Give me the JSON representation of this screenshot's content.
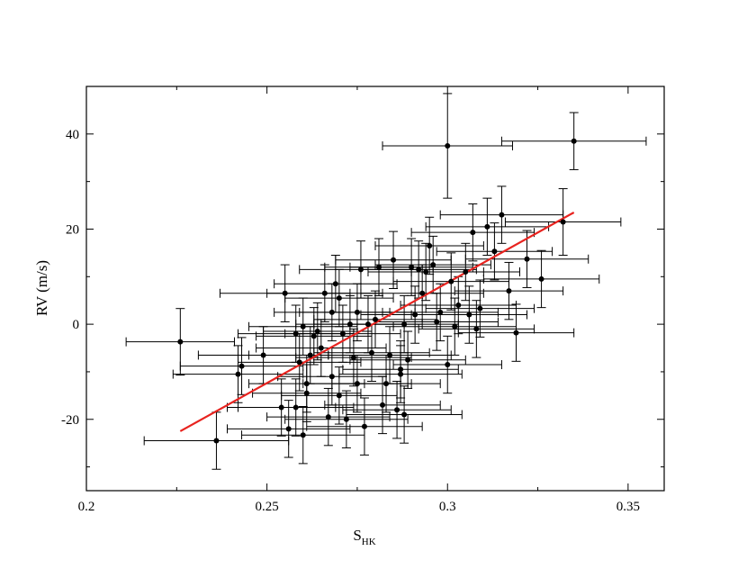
{
  "chart_data": {
    "type": "scatter",
    "xlabel": "S",
    "xlabel_subscript": "HK",
    "ylabel": "RV (m/s)",
    "xlim": [
      0.2,
      0.36
    ],
    "ylim": [
      -35,
      50
    ],
    "x_ticks": [
      0.2,
      0.25,
      0.3,
      0.35
    ],
    "x_tick_labels": [
      "0.2",
      "0.25",
      "0.3",
      "0.35"
    ],
    "y_ticks": [
      -20,
      0,
      20,
      40
    ],
    "y_tick_labels": [
      "-20",
      "0",
      "20",
      "40"
    ],
    "grid": false,
    "colors": {
      "points": "#000000",
      "fit_line": "#e8231f",
      "frame": "#000000"
    },
    "fit_line": {
      "x": [
        0.226,
        0.335
      ],
      "y": [
        -22.5,
        23.5
      ]
    },
    "points": [
      {
        "x": 0.226,
        "y": -3.7,
        "xerr": 0.015,
        "yerr": 7
      },
      {
        "x": 0.236,
        "y": -24.5,
        "xerr": 0.02,
        "yerr": 6
      },
      {
        "x": 0.242,
        "y": -10.5,
        "xerr": 0.018,
        "yerr": 6
      },
      {
        "x": 0.243,
        "y": -8.8,
        "xerr": 0.017,
        "yerr": 6
      },
      {
        "x": 0.249,
        "y": -6.5,
        "xerr": 0.018,
        "yerr": 6
      },
      {
        "x": 0.254,
        "y": -17.5,
        "xerr": 0.015,
        "yerr": 6
      },
      {
        "x": 0.255,
        "y": 6.5,
        "xerr": 0.018,
        "yerr": 6
      },
      {
        "x": 0.256,
        "y": -22,
        "xerr": 0.017,
        "yerr": 6
      },
      {
        "x": 0.258,
        "y": -2,
        "xerr": 0.016,
        "yerr": 6
      },
      {
        "x": 0.258,
        "y": -17.5,
        "xerr": 0.016,
        "yerr": 6
      },
      {
        "x": 0.259,
        "y": -8,
        "xerr": 0.017,
        "yerr": 6
      },
      {
        "x": 0.26,
        "y": -23.3,
        "xerr": 0.017,
        "yerr": 6
      },
      {
        "x": 0.26,
        "y": -0.5,
        "xerr": 0.015,
        "yerr": 6
      },
      {
        "x": 0.261,
        "y": -12.5,
        "xerr": 0.016,
        "yerr": 6
      },
      {
        "x": 0.261,
        "y": -14.5,
        "xerr": 0.015,
        "yerr": 6
      },
      {
        "x": 0.262,
        "y": -6.5,
        "xerr": 0.017,
        "yerr": 6
      },
      {
        "x": 0.263,
        "y": -2.5,
        "xerr": 0.016,
        "yerr": 6
      },
      {
        "x": 0.264,
        "y": -1.5,
        "xerr": 0.015,
        "yerr": 6
      },
      {
        "x": 0.265,
        "y": -5,
        "xerr": 0.018,
        "yerr": 6
      },
      {
        "x": 0.266,
        "y": 6.5,
        "xerr": 0.016,
        "yerr": 6
      },
      {
        "x": 0.267,
        "y": -19.5,
        "xerr": 0.017,
        "yerr": 6
      },
      {
        "x": 0.268,
        "y": -11,
        "xerr": 0.015,
        "yerr": 6
      },
      {
        "x": 0.268,
        "y": 2.5,
        "xerr": 0.016,
        "yerr": 6
      },
      {
        "x": 0.269,
        "y": 8.5,
        "xerr": 0.017,
        "yerr": 6
      },
      {
        "x": 0.27,
        "y": -15,
        "xerr": 0.016,
        "yerr": 6
      },
      {
        "x": 0.27,
        "y": 5.5,
        "xerr": 0.015,
        "yerr": 6
      },
      {
        "x": 0.271,
        "y": -2,
        "xerr": 0.016,
        "yerr": 6
      },
      {
        "x": 0.272,
        "y": -20,
        "xerr": 0.017,
        "yerr": 6
      },
      {
        "x": 0.273,
        "y": 0,
        "xerr": 0.015,
        "yerr": 6
      },
      {
        "x": 0.274,
        "y": -7,
        "xerr": 0.016,
        "yerr": 6
      },
      {
        "x": 0.275,
        "y": -12.5,
        "xerr": 0.015,
        "yerr": 6
      },
      {
        "x": 0.275,
        "y": 2.5,
        "xerr": 0.016,
        "yerr": 6
      },
      {
        "x": 0.276,
        "y": 11.5,
        "xerr": 0.017,
        "yerr": 6
      },
      {
        "x": 0.277,
        "y": -21.5,
        "xerr": 0.016,
        "yerr": 6
      },
      {
        "x": 0.278,
        "y": 0,
        "xerr": 0.015,
        "yerr": 6
      },
      {
        "x": 0.279,
        "y": -6,
        "xerr": 0.016,
        "yerr": 6
      },
      {
        "x": 0.28,
        "y": 1,
        "xerr": 0.017,
        "yerr": 6
      },
      {
        "x": 0.281,
        "y": 12,
        "xerr": 0.015,
        "yerr": 6
      },
      {
        "x": 0.282,
        "y": -17,
        "xerr": 0.016,
        "yerr": 6
      },
      {
        "x": 0.283,
        "y": -12.5,
        "xerr": 0.015,
        "yerr": 6
      },
      {
        "x": 0.284,
        "y": -6.5,
        "xerr": 0.017,
        "yerr": 6
      },
      {
        "x": 0.285,
        "y": 13.5,
        "xerr": 0.016,
        "yerr": 6
      },
      {
        "x": 0.286,
        "y": -18,
        "xerr": 0.015,
        "yerr": 6
      },
      {
        "x": 0.287,
        "y": -9.5,
        "xerr": 0.016,
        "yerr": 6
      },
      {
        "x": 0.287,
        "y": -10.5,
        "xerr": 0.017,
        "yerr": 6
      },
      {
        "x": 0.288,
        "y": -19,
        "xerr": 0.016,
        "yerr": 6
      },
      {
        "x": 0.288,
        "y": 0,
        "xerr": 0.015,
        "yerr": 6
      },
      {
        "x": 0.289,
        "y": -7.5,
        "xerr": 0.016,
        "yerr": 6
      },
      {
        "x": 0.29,
        "y": 12,
        "xerr": 0.017,
        "yerr": 6
      },
      {
        "x": 0.291,
        "y": 2,
        "xerr": 0.015,
        "yerr": 6
      },
      {
        "x": 0.292,
        "y": 11.5,
        "xerr": 0.016,
        "yerr": 6
      },
      {
        "x": 0.293,
        "y": 6.5,
        "xerr": 0.017,
        "yerr": 6
      },
      {
        "x": 0.294,
        "y": 11,
        "xerr": 0.016,
        "yerr": 6
      },
      {
        "x": 0.295,
        "y": 16.5,
        "xerr": 0.015,
        "yerr": 6
      },
      {
        "x": 0.296,
        "y": 12.5,
        "xerr": 0.016,
        "yerr": 6
      },
      {
        "x": 0.297,
        "y": 0.5,
        "xerr": 0.017,
        "yerr": 6
      },
      {
        "x": 0.298,
        "y": 2.5,
        "xerr": 0.016,
        "yerr": 6
      },
      {
        "x": 0.3,
        "y": -8.5,
        "xerr": 0.015,
        "yerr": 6
      },
      {
        "x": 0.301,
        "y": 9,
        "xerr": 0.016,
        "yerr": 6
      },
      {
        "x": 0.302,
        "y": -0.5,
        "xerr": 0.017,
        "yerr": 6
      },
      {
        "x": 0.303,
        "y": 4,
        "xerr": 0.016,
        "yerr": 6
      },
      {
        "x": 0.305,
        "y": 11,
        "xerr": 0.015,
        "yerr": 6
      },
      {
        "x": 0.306,
        "y": 2,
        "xerr": 0.016,
        "yerr": 6
      },
      {
        "x": 0.307,
        "y": 19.3,
        "xerr": 0.017,
        "yerr": 6
      },
      {
        "x": 0.308,
        "y": -1,
        "xerr": 0.016,
        "yerr": 6
      },
      {
        "x": 0.309,
        "y": 3.3,
        "xerr": 0.015,
        "yerr": 6
      },
      {
        "x": 0.3,
        "y": 37.5,
        "xerr": 0.018,
        "yerr": 11
      },
      {
        "x": 0.311,
        "y": 20.5,
        "xerr": 0.017,
        "yerr": 6
      },
      {
        "x": 0.313,
        "y": 15.3,
        "xerr": 0.016,
        "yerr": 6
      },
      {
        "x": 0.315,
        "y": 23,
        "xerr": 0.017,
        "yerr": 6
      },
      {
        "x": 0.317,
        "y": 7,
        "xerr": 0.015,
        "yerr": 6
      },
      {
        "x": 0.319,
        "y": -1.8,
        "xerr": 0.016,
        "yerr": 6
      },
      {
        "x": 0.322,
        "y": 13.7,
        "xerr": 0.017,
        "yerr": 6
      },
      {
        "x": 0.326,
        "y": 9.5,
        "xerr": 0.016,
        "yerr": 6
      },
      {
        "x": 0.332,
        "y": 21.5,
        "xerr": 0.016,
        "yerr": 7
      },
      {
        "x": 0.335,
        "y": 38.5,
        "xerr": 0.02,
        "yerr": 6
      }
    ]
  }
}
